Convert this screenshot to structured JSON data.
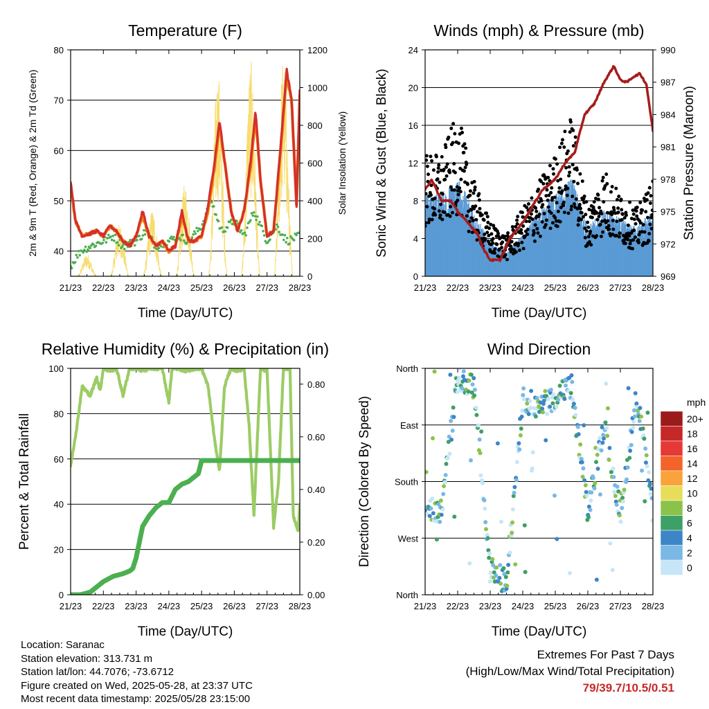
{
  "chart_data": [
    {
      "type": "line",
      "title": "Temperature (F)",
      "xlabel": "Time (Day/UTC)",
      "ylabel": "2m & 9m T (Red, Orange) & 2m Td (Green)",
      "y2label": "Solar Insolation (Yellow)",
      "xticks": [
        "21/23",
        "22/23",
        "23/23",
        "24/23",
        "25/23",
        "26/23",
        "27/23",
        "28/23"
      ],
      "yticks": [
        40,
        50,
        60,
        70,
        80
      ],
      "ylim": [
        35,
        80
      ],
      "y2ticks": [
        0,
        200,
        400,
        600,
        800,
        1000,
        1200
      ],
      "y2lim": [
        0,
        1200
      ],
      "grid": "horizontal",
      "colors": {
        "t2m": "#d32f2f",
        "t9m": "#f57c00",
        "td2m": "#4caf50",
        "solar": "#f7dc6f"
      },
      "series": [
        {
          "key": "t2m",
          "x": [
            0,
            0.15,
            0.35,
            0.6,
            0.8,
            1.0,
            1.2,
            1.4,
            1.6,
            1.8,
            2.0,
            2.2,
            2.4,
            2.6,
            2.8,
            3.0,
            3.2,
            3.4,
            3.6,
            3.8,
            4.0,
            4.2,
            4.4,
            4.55,
            4.7,
            4.9,
            5.1,
            5.3,
            5.5,
            5.65,
            5.8,
            6.0,
            6.2,
            6.4,
            6.6,
            6.75,
            6.9,
            7.0
          ],
          "y": [
            54,
            46,
            43,
            43.5,
            44,
            43,
            45,
            44,
            42,
            41,
            43,
            48,
            43,
            41,
            42,
            40,
            41,
            48,
            42,
            42,
            43,
            49,
            58,
            66,
            58,
            48,
            44,
            48,
            58,
            68,
            54,
            43,
            44,
            60,
            76,
            70,
            49,
            72
          ]
        },
        {
          "key": "t9m",
          "x": [
            0,
            0.15,
            0.35,
            0.6,
            0.8,
            1.0,
            1.2,
            1.4,
            1.6,
            1.8,
            2.0,
            2.2,
            2.4,
            2.6,
            2.8,
            3.0,
            3.2,
            3.4,
            3.6,
            3.8,
            4.0,
            4.2,
            4.4,
            4.55,
            4.7,
            4.9,
            5.1,
            5.3,
            5.5,
            5.65,
            5.8,
            6.0,
            6.2,
            6.4,
            6.6,
            6.75,
            6.9,
            7.0
          ],
          "y": [
            53,
            46,
            43,
            43.5,
            44,
            43,
            45,
            44,
            42,
            41,
            43,
            47,
            43,
            41,
            42,
            40,
            41,
            47,
            42,
            42,
            43,
            48,
            57,
            65,
            58,
            48,
            44,
            48,
            57,
            67,
            54,
            43,
            44,
            59,
            75,
            70,
            49,
            71
          ]
        },
        {
          "key": "td2m",
          "x": [
            0,
            0.3,
            0.6,
            1.0,
            1.3,
            1.6,
            2.0,
            2.3,
            2.6,
            3.0,
            3.3,
            3.6,
            4.0,
            4.3,
            4.6,
            5.0,
            5.3,
            5.6,
            6.0,
            6.3,
            6.6,
            7.0
          ],
          "y": [
            37,
            40,
            41,
            42,
            43,
            41,
            42,
            44,
            41,
            42,
            43,
            42,
            45,
            50,
            44,
            46,
            43,
            48,
            42,
            45,
            42,
            43
          ]
        },
        {
          "key": "solar",
          "x": [
            0.5,
            1.5,
            2.5,
            3.5,
            4.5,
            5.5,
            6.5
          ],
          "y": [
            120,
            280,
            360,
            500,
            1100,
            1150,
            1180
          ]
        }
      ]
    },
    {
      "type": "scatter",
      "title": "Winds (mph) & Pressure (mb)",
      "xlabel": "Time (Day/UTC)",
      "ylabel": "Sonic Wind & Gust (Blue, Black)",
      "y2label": "Station Pressure (Maroon)",
      "xticks": [
        "21/23",
        "22/23",
        "23/23",
        "24/23",
        "25/23",
        "26/23",
        "27/23",
        "28/23"
      ],
      "yticks": [
        0,
        4,
        8,
        12,
        16,
        20,
        24
      ],
      "ylim": [
        0,
        24
      ],
      "y2ticks": [
        969,
        972,
        975,
        978,
        981,
        984,
        987,
        990
      ],
      "y2lim": [
        969,
        990
      ],
      "grid": "horizontal",
      "colors": {
        "wind": "#5b9bd5",
        "gust": "#000000",
        "pressure": "#a51c1c"
      },
      "series": [
        {
          "key": "wind_mean",
          "x": [
            0,
            0.5,
            1.0,
            1.5,
            2.0,
            2.5,
            3.0,
            3.5,
            4.0,
            4.5,
            5.0,
            5.5,
            6.0,
            6.5,
            7.0
          ],
          "y": [
            5,
            5,
            6,
            4,
            2,
            1.5,
            2.5,
            4,
            5,
            6,
            3,
            4,
            3.5,
            3,
            4
          ]
        },
        {
          "key": "gust_mean",
          "x": [
            0,
            0.5,
            1.0,
            1.5,
            2.0,
            2.5,
            3.0,
            3.5,
            4.0,
            4.5,
            5.0,
            5.5,
            6.0,
            6.5,
            7.0
          ],
          "y": [
            9,
            9,
            12,
            7,
            4,
            3,
            5,
            7,
            9,
            12,
            5,
            8,
            6,
            5,
            7
          ]
        },
        {
          "key": "pressure",
          "x": [
            0,
            0.2,
            0.5,
            0.8,
            1.0,
            1.3,
            1.6,
            1.8,
            2.0,
            2.3,
            2.6,
            3.0,
            3.3,
            3.6,
            4.0,
            4.3,
            4.6,
            4.9,
            5.2,
            5.5,
            5.8,
            6.0,
            6.2,
            6.4,
            6.6,
            6.8,
            7.0
          ],
          "y": [
            977,
            978,
            976,
            976,
            975,
            974,
            973,
            971.5,
            970.5,
            970.5,
            972.5,
            974,
            975.5,
            977,
            978,
            979.5,
            980.5,
            984,
            985,
            987,
            988.5,
            987.2,
            987,
            987.5,
            987.8,
            986.8,
            982.5
          ]
        }
      ]
    },
    {
      "type": "line",
      "title": "Relative Humidity (%) & Precipitation (in)",
      "xlabel": "Time (Day/UTC)",
      "ylabel": "Percent & Total Rainfall",
      "xticks": [
        "21/23",
        "22/23",
        "23/23",
        "24/23",
        "25/23",
        "26/23",
        "27/23",
        "28/23"
      ],
      "yticks": [
        0,
        20,
        40,
        60,
        80,
        100
      ],
      "ylim": [
        0,
        100
      ],
      "y2ticks": [
        "0.00",
        "0.20",
        "0.40",
        "0.60",
        "0.80"
      ],
      "y2lim": [
        0,
        0.86
      ],
      "grid": "horizontal",
      "colors": {
        "rh": "#9ccc65",
        "precip": "#4caf50"
      },
      "series": [
        {
          "key": "rh",
          "x": [
            0,
            0.1,
            0.2,
            0.35,
            0.6,
            0.8,
            0.9,
            1.0,
            1.2,
            1.4,
            1.6,
            1.8,
            2.0,
            2.2,
            2.4,
            2.6,
            2.8,
            3.0,
            3.1,
            3.3,
            3.5,
            3.8,
            4.0,
            4.2,
            4.4,
            4.55,
            4.7,
            4.9,
            5.1,
            5.3,
            5.45,
            5.6,
            5.8,
            6.0,
            6.2,
            6.35,
            6.5,
            6.7,
            6.8,
            6.95,
            7.0
          ],
          "y": [
            57,
            66,
            75,
            92,
            88,
            96,
            90,
            100,
            99,
            100,
            88,
            100,
            100,
            99,
            100,
            100,
            100,
            85,
            100,
            100,
            99,
            100,
            100,
            92,
            68,
            55,
            92,
            100,
            99,
            100,
            75,
            35,
            100,
            99,
            30,
            50,
            100,
            100,
            35,
            28,
            40
          ]
        },
        {
          "key": "precip",
          "x": [
            0,
            0.3,
            0.6,
            0.8,
            1.0,
            1.3,
            1.6,
            1.8,
            1.9,
            2.0,
            2.1,
            2.2,
            2.4,
            2.6,
            2.8,
            3.0,
            3.2,
            3.4,
            3.6,
            3.8,
            3.9,
            4.0,
            4.5,
            5.0,
            5.5,
            6.0,
            6.5,
            7.0
          ],
          "y": [
            0,
            0,
            0.01,
            0.03,
            0.05,
            0.07,
            0.08,
            0.09,
            0.1,
            0.14,
            0.2,
            0.26,
            0.3,
            0.33,
            0.35,
            0.35,
            0.4,
            0.42,
            0.43,
            0.45,
            0.46,
            0.51,
            0.51,
            0.51,
            0.51,
            0.51,
            0.51,
            0.51
          ]
        }
      ]
    },
    {
      "type": "scatter",
      "title": "Wind Direction",
      "xlabel": "Time (Day/UTC)",
      "ylabel": "Direction (Colored By Speed)",
      "xticks": [
        "21/23",
        "22/23",
        "23/23",
        "24/23",
        "25/23",
        "26/23",
        "27/23",
        "28/23"
      ],
      "yticks": [
        "North",
        "West",
        "South",
        "East",
        "North"
      ],
      "ylim": [
        0,
        360
      ],
      "grid": "horizontal",
      "legend": {
        "title": "mph",
        "labels": [
          "20+",
          "18",
          "16",
          "14",
          "12",
          "10",
          "8",
          "6",
          "4",
          "2",
          "0"
        ],
        "colors": [
          "#9b1b1b",
          "#c62828",
          "#e53935",
          "#f4642a",
          "#f9a33a",
          "#e8dd58",
          "#8bc34a",
          "#3da066",
          "#3d85c6",
          "#7ab8e5",
          "#c6e6f7"
        ],
        "placement": "right"
      },
      "series": [
        {
          "key": "direction",
          "x": [
            0,
            0.5,
            1.0,
            1.5,
            2.0,
            2.5,
            3.0,
            3.5,
            4.0,
            4.5,
            5.0,
            5.5,
            6.0,
            6.5,
            7.0
          ],
          "y": [
            140,
            135,
            345,
            330,
            40,
            20,
            310,
            300,
            315,
            330,
            130,
            270,
            130,
            320,
            130
          ]
        }
      ]
    }
  ],
  "info": {
    "location": "Location: Saranac",
    "elevation": "Station elevation: 313.731 m",
    "latlon": "Station lat/lon: 44.7076; -73.6712",
    "created": "Figure created on Wed, 2025-05-28, at 23:37 UTC",
    "recent": "Most recent data timestamp: 2025/05/28 23:15:00"
  },
  "extremes": {
    "title": "Extremes For Past 7 Days",
    "subtitle": "(High/Low/Max Wind/Total Precipitation)",
    "values": "79/39.7/10.5/0.51"
  }
}
